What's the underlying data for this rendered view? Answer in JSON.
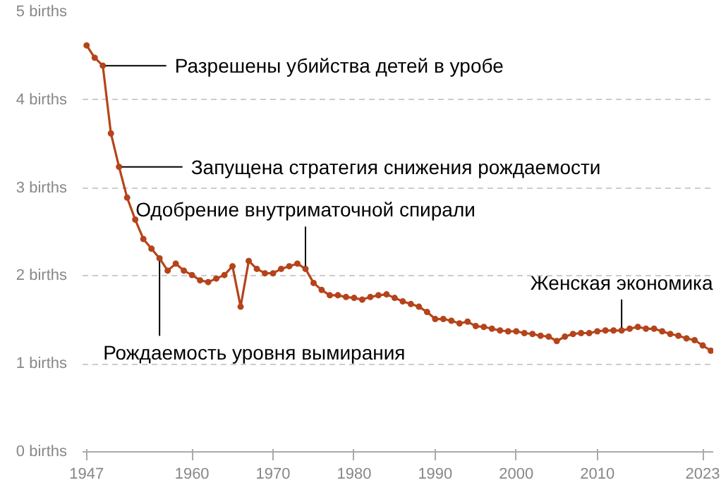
{
  "chart_data": {
    "type": "line",
    "x": [
      1947,
      1948,
      1949,
      1950,
      1951,
      1952,
      1953,
      1954,
      1955,
      1956,
      1957,
      1958,
      1959,
      1960,
      1961,
      1962,
      1963,
      1964,
      1965,
      1966,
      1967,
      1968,
      1969,
      1970,
      1971,
      1972,
      1973,
      1974,
      1975,
      1976,
      1977,
      1978,
      1979,
      1980,
      1981,
      1982,
      1983,
      1984,
      1985,
      1986,
      1987,
      1988,
      1989,
      1990,
      1991,
      1992,
      1993,
      1994,
      1995,
      1996,
      1997,
      1998,
      1999,
      2000,
      2001,
      2002,
      2003,
      2004,
      2005,
      2006,
      2007,
      2008,
      2009,
      2010,
      2011,
      2012,
      2013,
      2014,
      2015,
      2016,
      2017,
      2018,
      2019,
      2020,
      2021,
      2022,
      2023,
      2024
    ],
    "series": [
      {
        "color": "#b5441b",
        "values": [
          4.62,
          4.48,
          4.39,
          3.62,
          3.24,
          2.89,
          2.64,
          2.42,
          2.31,
          2.2,
          2.06,
          2.14,
          2.06,
          2.01,
          1.95,
          1.93,
          1.97,
          2.01,
          2.11,
          1.65,
          2.17,
          2.08,
          2.03,
          2.03,
          2.08,
          2.11,
          2.14,
          2.08,
          1.92,
          1.84,
          1.78,
          1.78,
          1.76,
          1.75,
          1.73,
          1.76,
          1.78,
          1.79,
          1.75,
          1.71,
          1.68,
          1.65,
          1.59,
          1.51,
          1.51,
          1.49,
          1.46,
          1.48,
          1.43,
          1.42,
          1.4,
          1.38,
          1.37,
          1.37,
          1.35,
          1.34,
          1.32,
          1.31,
          1.26,
          1.31,
          1.34,
          1.35,
          1.35,
          1.37,
          1.38,
          1.38,
          1.38,
          1.4,
          1.42,
          1.4,
          1.4,
          1.37,
          1.34,
          1.32,
          1.29,
          1.27,
          1.21,
          1.15
        ]
      }
    ],
    "xlim": [
      1946.5,
      2024.3
    ],
    "ylim": [
      0,
      5
    ],
    "xticks": [
      1947,
      1960,
      1970,
      1980,
      1990,
      2000,
      2010,
      2023
    ],
    "yticks": [
      {
        "value": 0,
        "label": "0 births"
      },
      {
        "value": 1,
        "label": "1 births"
      },
      {
        "value": 2,
        "label": "2 births"
      },
      {
        "value": 3,
        "label": "3 births"
      },
      {
        "value": 4,
        "label": "4 births"
      },
      {
        "value": 5,
        "label": "5 births"
      }
    ],
    "grid": "y",
    "marker": "circle",
    "line_style": "solid",
    "annotations": [
      {
        "text": "Разрешены убийства детей в уробе",
        "x": 1949,
        "y": 4.39
      },
      {
        "text": "Запущена стратегия снижения рождаемости",
        "x": 1951,
        "y": 3.24
      },
      {
        "text": "Рождаемость уровня вымирания",
        "x": 1956,
        "y": 2.2
      },
      {
        "text": "Одобрение внутриматочной спирали",
        "x": 1974,
        "y": 2.08
      },
      {
        "text": "Женская экономика",
        "x": 2013,
        "y": 1.38
      }
    ]
  }
}
